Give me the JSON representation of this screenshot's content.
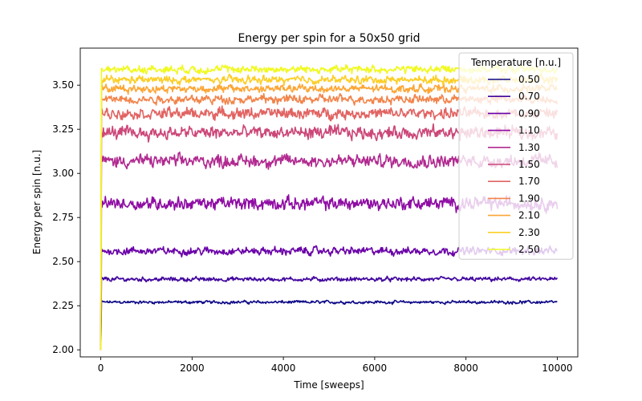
{
  "chart_data": {
    "type": "line",
    "title": "Energy per spin for a 50x50 grid",
    "xlabel": "Time [sweeps]",
    "ylabel": "Energy per spin [n.u.]",
    "xlim": [
      -450,
      10450
    ],
    "ylim": [
      1.96,
      3.71
    ],
    "xticks": [
      0,
      2000,
      4000,
      6000,
      8000,
      10000
    ],
    "xtick_labels": [
      "0",
      "2000",
      "4000",
      "6000",
      "8000",
      "10000"
    ],
    "yticks": [
      2.0,
      2.25,
      2.5,
      2.75,
      3.0,
      3.25,
      3.5
    ],
    "ytick_labels": [
      "2.00",
      "2.25",
      "2.50",
      "2.75",
      "3.00",
      "3.25",
      "3.50"
    ],
    "grid": false,
    "legend": {
      "title": "Temperature [n.u.]",
      "placement": "top-right"
    },
    "x_range": [
      0,
      10000
    ],
    "initial_value": 2.0,
    "series": [
      {
        "name": "0.50",
        "color": "#0d0887",
        "mean": 2.27,
        "fluctuation": 0.007
      },
      {
        "name": "0.70",
        "color": "#41049d",
        "mean": 2.4,
        "fluctuation": 0.01
      },
      {
        "name": "0.90",
        "color": "#6a00a8",
        "mean": 2.56,
        "fluctuation": 0.018
      },
      {
        "name": "1.10",
        "color": "#8f0da4",
        "mean": 2.83,
        "fluctuation": 0.03
      },
      {
        "name": "1.30",
        "color": "#b12a90",
        "mean": 3.07,
        "fluctuation": 0.03
      },
      {
        "name": "1.50",
        "color": "#cc4778",
        "mean": 3.23,
        "fluctuation": 0.03
      },
      {
        "name": "1.70",
        "color": "#e16462",
        "mean": 3.34,
        "fluctuation": 0.025
      },
      {
        "name": "1.90",
        "color": "#f2844b",
        "mean": 3.42,
        "fluctuation": 0.02
      },
      {
        "name": "2.10",
        "color": "#fca636",
        "mean": 3.48,
        "fluctuation": 0.018
      },
      {
        "name": "2.30",
        "color": "#fcce25",
        "mean": 3.53,
        "fluctuation": 0.018
      },
      {
        "name": "2.50",
        "color": "#f0f921",
        "mean": 3.59,
        "fluctuation": 0.018
      }
    ]
  }
}
